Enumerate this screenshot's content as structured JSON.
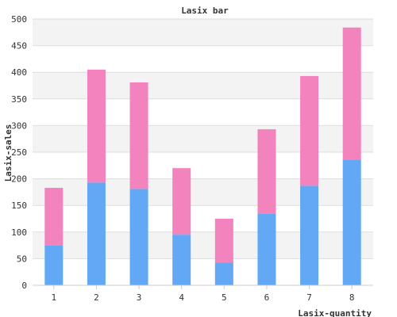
{
  "chart_data": {
    "type": "bar",
    "stacked": true,
    "title": "Lasix bar",
    "xlabel": "Lasix-quantity",
    "ylabel": "Lasix-sales",
    "categories": [
      "1",
      "2",
      "3",
      "4",
      "5",
      "6",
      "7",
      "8"
    ],
    "series": [
      {
        "values": [
          75,
          193,
          181,
          95,
          43,
          134,
          187,
          236
        ],
        "color": "#63a8f5"
      },
      {
        "values": [
          108,
          212,
          200,
          125,
          82,
          159,
          206,
          248
        ],
        "color": "#f283bc"
      }
    ],
    "ylim": [
      0,
      500
    ],
    "yticks": [
      "0",
      "50",
      "100",
      "150",
      "200",
      "250",
      "300",
      "350",
      "400",
      "450",
      "500"
    ],
    "grid": true,
    "band_colors": [
      "#ffffff",
      "#f3f3f3"
    ]
  }
}
